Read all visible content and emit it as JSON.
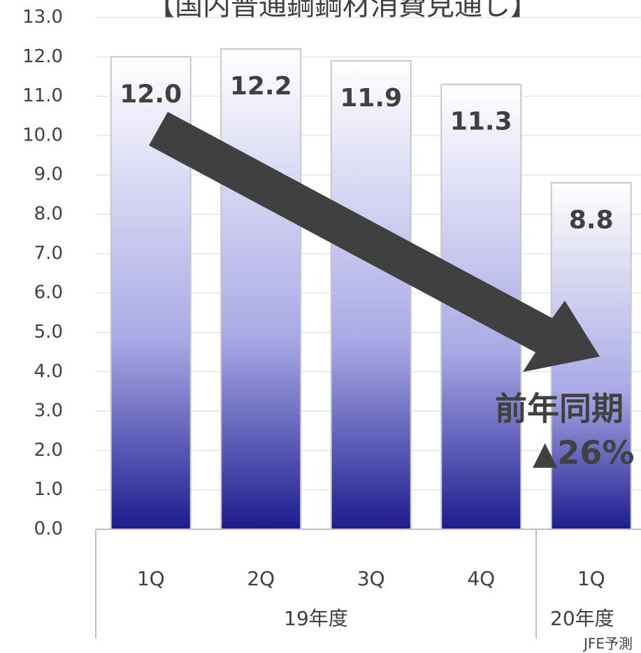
{
  "chart_data": {
    "type": "bar",
    "title": "【国内普通鋼鋼材消費見通し】",
    "categories": [
      "1Q",
      "2Q",
      "3Q",
      "4Q",
      "1Q"
    ],
    "groups": [
      {
        "label": "19年度",
        "span": 4
      },
      {
        "label": "20年度",
        "span": 1
      }
    ],
    "values": [
      12.0,
      12.2,
      11.9,
      11.3,
      8.8
    ],
    "value_labels": [
      "12.0",
      "12.2",
      "11.9",
      "11.3",
      "8.8"
    ],
    "color": [
      "#ffffff",
      "#a9a9e6",
      "#1c1c8e"
    ],
    "ylim": [
      0,
      13
    ],
    "yticks": [
      {
        "value": 0,
        "label": "0.0"
      },
      {
        "value": 1,
        "label": "1.0"
      },
      {
        "value": 2,
        "label": "2.0"
      },
      {
        "value": 3,
        "label": "3.0"
      },
      {
        "value": 4,
        "label": "4.0"
      },
      {
        "value": 5,
        "label": "5.0"
      },
      {
        "value": 6,
        "label": "6.0"
      },
      {
        "value": 7,
        "label": "7.0"
      },
      {
        "value": 8,
        "label": "8.0"
      },
      {
        "value": 9,
        "label": "9.0"
      },
      {
        "value": 10,
        "label": "10.0"
      },
      {
        "value": 11,
        "label": "11.0"
      },
      {
        "value": 12,
        "label": "12.0"
      },
      {
        "value": 13,
        "label": "13.0"
      }
    ],
    "grid": true,
    "annotations": [
      "前年同期",
      "▲26%"
    ],
    "source": "JFE予測"
  }
}
